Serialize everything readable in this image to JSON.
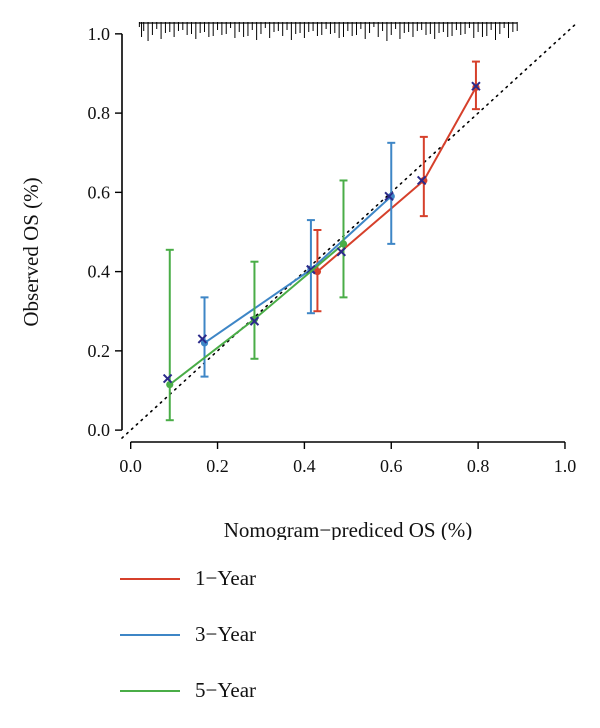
{
  "chart_data": {
    "type": "line",
    "title": "",
    "xlabel": "Nomogram−prediced OS (%)",
    "ylabel": "Observed OS (%)",
    "xlim": [
      -0.02,
      1.03
    ],
    "ylim": [
      -0.03,
      1.04
    ],
    "xticks": [
      "0.0",
      "0.2",
      "0.4",
      "0.6",
      "0.8",
      "1.0"
    ],
    "yticks": [
      "0.0",
      "0.2",
      "0.4",
      "0.6",
      "0.8",
      "1.0"
    ],
    "reference_line": {
      "style": "dotted",
      "from": [
        -0.02,
        -0.02
      ],
      "to": [
        1.03,
        1.03
      ],
      "color": "#000000"
    },
    "rug_x": [
      0.02,
      0.025,
      0.03,
      0.04,
      0.05,
      0.06,
      0.07,
      0.08,
      0.09,
      0.1,
      0.11,
      0.12,
      0.13,
      0.14,
      0.15,
      0.16,
      0.17,
      0.18,
      0.19,
      0.2,
      0.21,
      0.22,
      0.23,
      0.24,
      0.25,
      0.26,
      0.27,
      0.28,
      0.29,
      0.3,
      0.31,
      0.32,
      0.33,
      0.34,
      0.35,
      0.36,
      0.37,
      0.38,
      0.39,
      0.4,
      0.41,
      0.42,
      0.43,
      0.44,
      0.45,
      0.46,
      0.47,
      0.48,
      0.49,
      0.5,
      0.51,
      0.52,
      0.53,
      0.54,
      0.55,
      0.56,
      0.57,
      0.58,
      0.59,
      0.6,
      0.61,
      0.62,
      0.63,
      0.64,
      0.65,
      0.66,
      0.67,
      0.68,
      0.69,
      0.7,
      0.71,
      0.72,
      0.73,
      0.74,
      0.75,
      0.76,
      0.77,
      0.78,
      0.79,
      0.8,
      0.81,
      0.82,
      0.83,
      0.84,
      0.85,
      0.86,
      0.87,
      0.88,
      0.89
    ],
    "series": [
      {
        "name": "1−Year",
        "color": "#d6402b",
        "points": [
          {
            "x": 0.43,
            "y": 0.4,
            "lo": 0.3,
            "hi": 0.505
          },
          {
            "x": 0.675,
            "y": 0.63,
            "lo": 0.54,
            "hi": 0.74
          },
          {
            "x": 0.795,
            "y": 0.865,
            "lo": 0.81,
            "hi": 0.93
          }
        ],
        "cross": [
          [
            0.415,
            0.405
          ],
          [
            0.67,
            0.63
          ],
          [
            0.795,
            0.868
          ]
        ]
      },
      {
        "name": "3−Year",
        "color": "#3e86c6",
        "points": [
          {
            "x": 0.17,
            "y": 0.22,
            "lo": 0.135,
            "hi": 0.335
          },
          {
            "x": 0.415,
            "y": 0.405,
            "lo": 0.295,
            "hi": 0.53
          },
          {
            "x": 0.6,
            "y": 0.59,
            "lo": 0.47,
            "hi": 0.725
          }
        ],
        "cross": [
          [
            0.165,
            0.23
          ],
          [
            0.415,
            0.405
          ],
          [
            0.595,
            0.59
          ]
        ]
      },
      {
        "name": "5−Year",
        "color": "#4aad47",
        "points": [
          {
            "x": 0.09,
            "y": 0.115,
            "lo": 0.025,
            "hi": 0.455
          },
          {
            "x": 0.285,
            "y": 0.28,
            "lo": 0.18,
            "hi": 0.425
          },
          {
            "x": 0.49,
            "y": 0.47,
            "lo": 0.335,
            "hi": 0.63
          }
        ],
        "cross": [
          [
            0.085,
            0.13
          ],
          [
            0.285,
            0.275
          ],
          [
            0.485,
            0.45
          ]
        ]
      }
    ],
    "legend_position": "below"
  }
}
